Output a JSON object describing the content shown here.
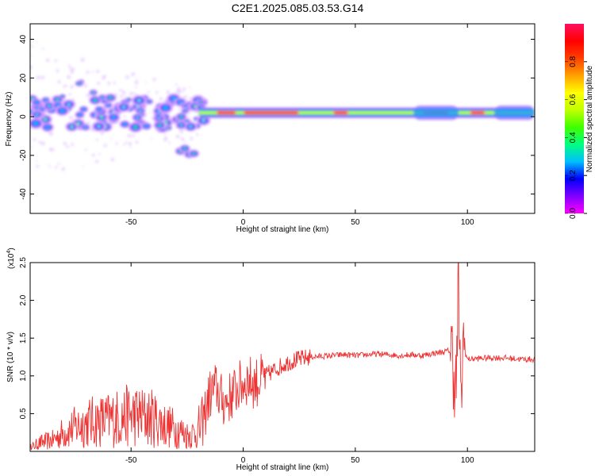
{
  "title": "C2E1.2025.085.03.53.G14",
  "colors": {
    "snr_line": "#ee3333",
    "frame": "#000000"
  },
  "chart_data": [
    {
      "type": "heatmap",
      "xlabel": "Height of straight line (km)",
      "ylabel": "Frequency (Hz)",
      "xlim": [
        -95,
        130
      ],
      "ylim": [
        -50,
        48
      ],
      "xticks": [
        -50,
        0,
        50,
        100
      ],
      "xtick_labels": [
        "-50",
        "0",
        "50",
        "100"
      ],
      "yticks": [
        -40,
        -20,
        0,
        20,
        40
      ],
      "ytick_labels": [
        "-40",
        "-20",
        "0",
        "20",
        "40"
      ],
      "colorbar": {
        "label": "Normalized spectral amplitude",
        "range": [
          0,
          1
        ],
        "ticks": [
          0.0,
          0.2,
          0.4,
          0.6,
          0.8
        ],
        "tick_labels": [
          "0.0",
          "0.2",
          "0.4",
          "0.6",
          "0.8"
        ],
        "colormap": [
          "#ff00ff",
          "#8000ff",
          "#0000ff",
          "#00bfff",
          "#00ff80",
          "#40ff00",
          "#c0ff00",
          "#ffff00",
          "#ffa000",
          "#ff4000",
          "#ff0000",
          "#ff1060"
        ]
      },
      "features": [
        {
          "x": [
            -95,
            -20
          ],
          "freq_center": 1,
          "spread": 12,
          "description_value": "scattered spectral blobs"
        },
        {
          "x": [
            -28,
            -22
          ],
          "freq_center": -18,
          "spread": 4
        },
        {
          "x": [
            -20,
            130
          ],
          "freq_center": 2,
          "spread": 3
        }
      ]
    },
    {
      "type": "line",
      "xlabel": "Height of straight line (km)",
      "ylabel": "SNR (10 * v/v)",
      "y_multiplier": "(x10^4)",
      "y_multiplier_base": "(x10",
      "y_multiplier_exp": "4",
      "y_multiplier_close": ")",
      "xlim": [
        -95,
        130
      ],
      "ylim": [
        0,
        2.5
      ],
      "xticks": [
        -50,
        0,
        50,
        100
      ],
      "xtick_labels": [
        "-50",
        "0",
        "50",
        "100"
      ],
      "yticks": [
        0.5,
        1.0,
        1.5,
        2.0,
        2.5
      ],
      "ytick_labels": [
        "0.5",
        "1.0",
        "1.5",
        "2.0",
        "2.5"
      ],
      "series": [
        {
          "x": [
            -95,
            -90,
            -85,
            -80,
            -75,
            -70,
            -65,
            -60,
            -55,
            -50,
            -45,
            -40,
            -35,
            -30,
            -25,
            -20,
            -18,
            -15,
            -12,
            -10,
            -8,
            -5,
            -2,
            0,
            2,
            5,
            8,
            10,
            15,
            20,
            25,
            30,
            35,
            40,
            45,
            50,
            55,
            60,
            65,
            70,
            75,
            80,
            85,
            90,
            93,
            95,
            96,
            97,
            98,
            100,
            105,
            110,
            115,
            120,
            125,
            130
          ],
          "y": [
            0.05,
            0.12,
            0.15,
            0.25,
            0.32,
            0.38,
            0.4,
            0.42,
            0.45,
            0.48,
            0.46,
            0.44,
            0.35,
            0.3,
            0.22,
            0.25,
            0.4,
            0.75,
            0.85,
            0.7,
            0.65,
            0.75,
            0.85,
            0.9,
            0.95,
            0.9,
            0.95,
            1.0,
            1.1,
            1.18,
            1.22,
            1.25,
            1.26,
            1.27,
            1.28,
            1.27,
            1.28,
            1.29,
            1.28,
            1.27,
            1.28,
            1.27,
            1.3,
            1.32,
            1.35,
            0.8,
            2.3,
            0.5,
            1.4,
            1.22,
            1.23,
            1.24,
            1.24,
            1.23,
            1.22,
            1.22
          ]
        }
      ]
    }
  ]
}
